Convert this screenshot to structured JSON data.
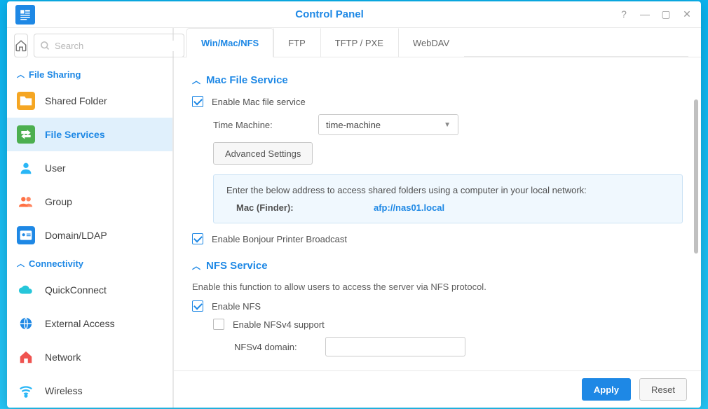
{
  "window": {
    "title": "Control Panel"
  },
  "search": {
    "placeholder": "Search"
  },
  "sidebar": {
    "sections": [
      {
        "title": "File Sharing",
        "items": [
          {
            "label": "Shared Folder",
            "icon": "folder",
            "color": "#f5a623"
          },
          {
            "label": "File Services",
            "icon": "arrows",
            "color": "#4caf50",
            "active": true
          },
          {
            "label": "User",
            "icon": "user",
            "color": "#29b6f6"
          },
          {
            "label": "Group",
            "icon": "group",
            "color": "#ff7043"
          },
          {
            "label": "Domain/LDAP",
            "icon": "card",
            "color": "#1e88e5"
          }
        ]
      },
      {
        "title": "Connectivity",
        "items": [
          {
            "label": "QuickConnect",
            "icon": "cloud",
            "color": "#26c6da"
          },
          {
            "label": "External Access",
            "icon": "globe",
            "color": "#1e88e5"
          },
          {
            "label": "Network",
            "icon": "house",
            "color": "#ef5350"
          },
          {
            "label": "Wireless",
            "icon": "wifi",
            "color": "#29b6f6"
          }
        ]
      }
    ]
  },
  "tabs": [
    {
      "label": "Win/Mac/NFS",
      "active": true
    },
    {
      "label": "FTP"
    },
    {
      "label": "TFTP / PXE"
    },
    {
      "label": "WebDAV"
    }
  ],
  "mac": {
    "heading": "Mac File Service",
    "enable_label": "Enable Mac file service",
    "tm_label": "Time Machine:",
    "tm_value": "time-machine",
    "adv_btn": "Advanced Settings",
    "info_intro": "Enter the below address to access shared folders using a computer in your local network:",
    "info_label": "Mac (Finder):",
    "info_url": "afp://nas01.local",
    "bonjour_label": "Enable Bonjour Printer Broadcast"
  },
  "nfs": {
    "heading": "NFS Service",
    "desc": "Enable this function to allow users to access the server via NFS protocol.",
    "enable_label": "Enable NFS",
    "v4_label": "Enable NFSv4 support",
    "domain_label": "NFSv4 domain:",
    "domain_value": ""
  },
  "footer": {
    "apply": "Apply",
    "reset": "Reset"
  }
}
